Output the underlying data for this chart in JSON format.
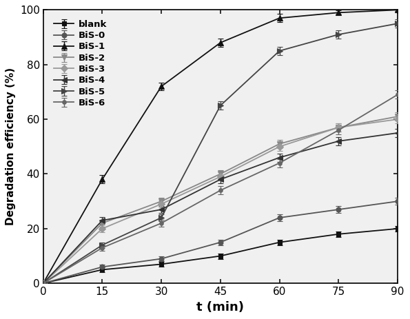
{
  "x": [
    0,
    15,
    30,
    45,
    60,
    75,
    90
  ],
  "series_order": [
    "blank",
    "BiS-0",
    "BiS-1",
    "BiS-2",
    "BiS-3",
    "BiS-4",
    "BiS-5",
    "BiS-6"
  ],
  "series": {
    "blank": {
      "y": [
        0,
        5,
        7,
        10,
        15,
        18,
        20
      ],
      "yerr": [
        0,
        0.8,
        0.8,
        1.0,
        1.0,
        1.0,
        1.0
      ],
      "color": "#111111",
      "marker": "s",
      "label": "blank"
    },
    "BiS-0": {
      "y": [
        0,
        6,
        9,
        15,
        24,
        27,
        30
      ],
      "yerr": [
        0,
        0.8,
        0.8,
        1.0,
        1.2,
        1.2,
        1.2
      ],
      "color": "#555555",
      "marker": "o",
      "label": "BiS-0"
    },
    "BiS-1": {
      "y": [
        0,
        38,
        72,
        88,
        97,
        99,
        100
      ],
      "yerr": [
        0,
        1.5,
        1.5,
        1.5,
        1.5,
        0.8,
        0.3
      ],
      "color": "#111111",
      "marker": "^",
      "label": "BiS-1"
    },
    "BiS-2": {
      "y": [
        0,
        22,
        30,
        40,
        51,
        57,
        61
      ],
      "yerr": [
        0,
        1.2,
        1.2,
        1.5,
        1.5,
        1.5,
        1.5
      ],
      "color": "#888888",
      "marker": "v",
      "label": "BiS-2"
    },
    "BiS-3": {
      "y": [
        0,
        20,
        29,
        39,
        50,
        57,
        60
      ],
      "yerr": [
        0,
        1.2,
        1.2,
        1.5,
        1.5,
        1.5,
        1.5
      ],
      "color": "#999999",
      "marker": "D",
      "label": "BiS-3"
    },
    "BiS-4": {
      "y": [
        0,
        23,
        27,
        38,
        46,
        52,
        55
      ],
      "yerr": [
        0,
        1.2,
        1.2,
        1.5,
        1.5,
        1.5,
        1.5
      ],
      "color": "#333333",
      "marker": "<",
      "label": "BiS-4"
    },
    "BiS-5": {
      "y": [
        0,
        14,
        24,
        65,
        85,
        91,
        95
      ],
      "yerr": [
        0,
        1.0,
        1.2,
        1.5,
        1.5,
        1.5,
        1.5
      ],
      "color": "#444444",
      "marker": ">",
      "label": "BiS-5"
    },
    "BiS-6": {
      "y": [
        0,
        13,
        22,
        34,
        44,
        56,
        69
      ],
      "yerr": [
        0,
        1.0,
        1.2,
        1.5,
        1.5,
        1.5,
        1.5
      ],
      "color": "#666666",
      "marker": "o",
      "label": "BiS-6"
    }
  },
  "marker_sizes": {
    "blank": 5,
    "BiS-0": 5,
    "BiS-1": 6,
    "BiS-2": 6,
    "BiS-3": 5,
    "BiS-4": 6,
    "BiS-5": 6,
    "BiS-6": 4
  },
  "xlabel": "t (min)",
  "ylabel": "Degradation efficiency (%)",
  "xlim": [
    0,
    90
  ],
  "ylim": [
    0,
    100
  ],
  "xticks": [
    0,
    15,
    30,
    45,
    60,
    75,
    90
  ],
  "yticks": [
    0,
    20,
    40,
    60,
    80,
    100
  ],
  "background_color": "#f0f0f0",
  "figsize": [
    5.95,
    4.63
  ],
  "dpi": 100
}
